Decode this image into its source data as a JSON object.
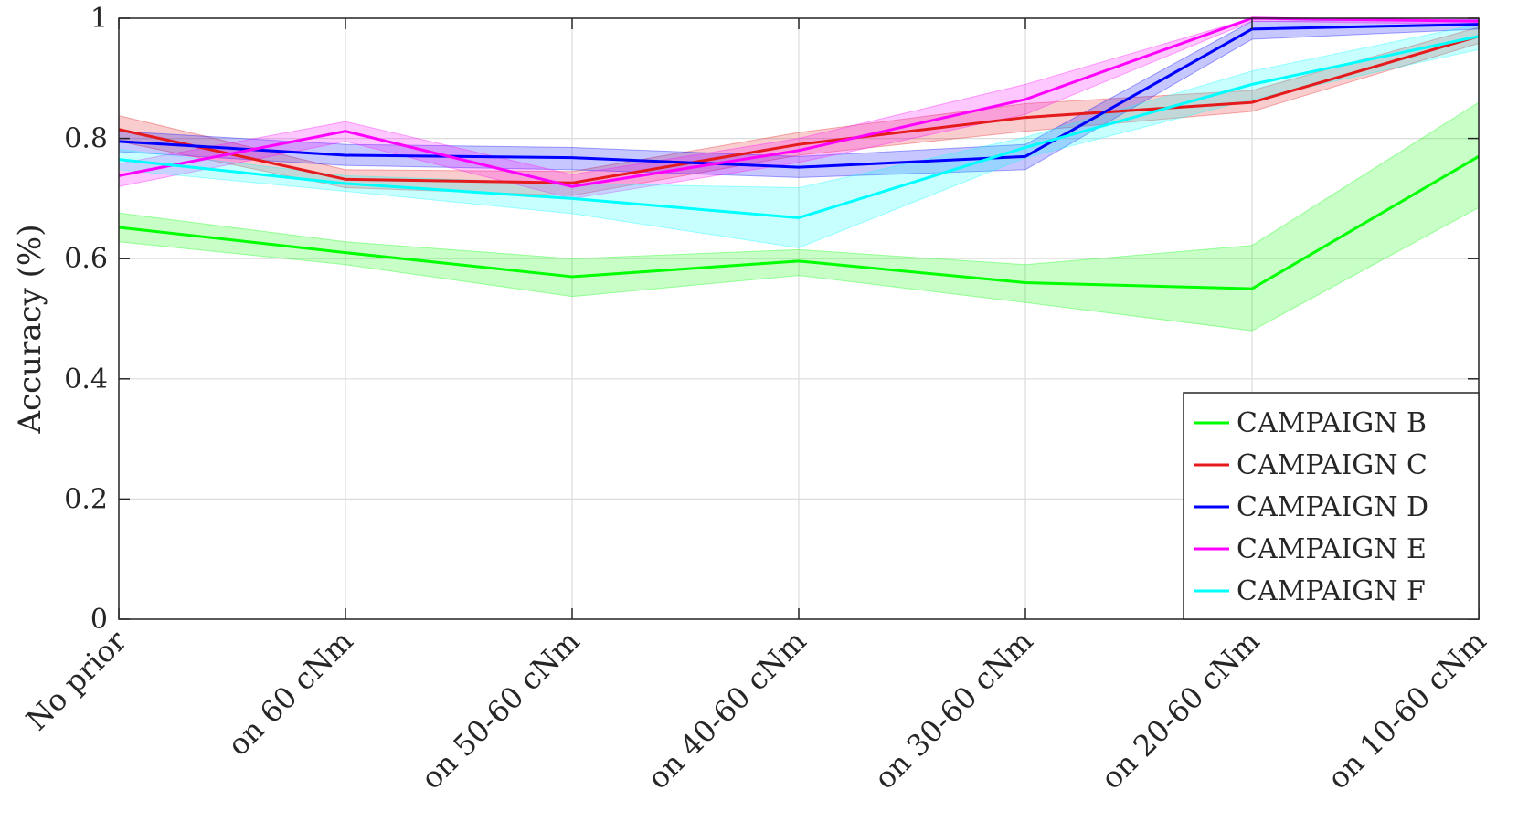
{
  "chart_data": {
    "type": "line",
    "ylabel": "Accuracy (%)",
    "xlabel": "",
    "categories": [
      "No prior",
      "on 60 cNm",
      "on 50-60 cNm",
      "on 40-60 cNm",
      "on 30-60 cNm",
      "on 20-60 cNm",
      "on 10-60 cNm"
    ],
    "ylim": [
      0,
      1
    ],
    "yticks": [
      "0",
      "0.2",
      "0.4",
      "0.6",
      "0.8",
      "1"
    ],
    "grid": true,
    "legend_position": "bottom-right",
    "series": [
      {
        "name": "CAMPAIGN B",
        "color": "#00ff00",
        "values": [
          0.652,
          0.61,
          0.57,
          0.596,
          0.56,
          0.55,
          0.77
        ],
        "lower": [
          0.628,
          0.59,
          0.537,
          0.572,
          0.527,
          0.48,
          0.685
        ],
        "upper": [
          0.676,
          0.628,
          0.6,
          0.615,
          0.59,
          0.622,
          0.86
        ]
      },
      {
        "name": "CAMPAIGN C",
        "color": "#e41a1c",
        "values": [
          0.815,
          0.732,
          0.726,
          0.79,
          0.835,
          0.86,
          0.97
        ],
        "lower": [
          0.795,
          0.718,
          0.705,
          0.772,
          0.812,
          0.845,
          0.958
        ],
        "upper": [
          0.838,
          0.748,
          0.745,
          0.81,
          0.858,
          0.88,
          0.985
        ]
      },
      {
        "name": "CAMPAIGN D",
        "color": "#0000ff",
        "values": [
          0.795,
          0.772,
          0.768,
          0.752,
          0.77,
          0.982,
          0.99
        ],
        "lower": [
          0.778,
          0.755,
          0.748,
          0.735,
          0.748,
          0.965,
          0.982
        ],
        "upper": [
          0.812,
          0.79,
          0.785,
          0.77,
          0.79,
          0.995,
          0.998
        ]
      },
      {
        "name": "CAMPAIGN E",
        "color": "#ff00ff",
        "values": [
          0.738,
          0.812,
          0.72,
          0.78,
          0.865,
          1.0,
          0.995
        ],
        "lower": [
          0.72,
          0.795,
          0.7,
          0.76,
          0.84,
          0.995,
          0.99
        ],
        "upper": [
          0.758,
          0.828,
          0.74,
          0.8,
          0.89,
          1.0,
          1.0
        ]
      },
      {
        "name": "CAMPAIGN F",
        "color": "#00ffff",
        "values": [
          0.765,
          0.725,
          0.7,
          0.668,
          0.785,
          0.89,
          0.97
        ],
        "lower": [
          0.748,
          0.712,
          0.675,
          0.618,
          0.768,
          0.865,
          0.948
        ],
        "upper": [
          0.782,
          0.738,
          0.725,
          0.718,
          0.802,
          0.912,
          0.99
        ]
      }
    ]
  }
}
